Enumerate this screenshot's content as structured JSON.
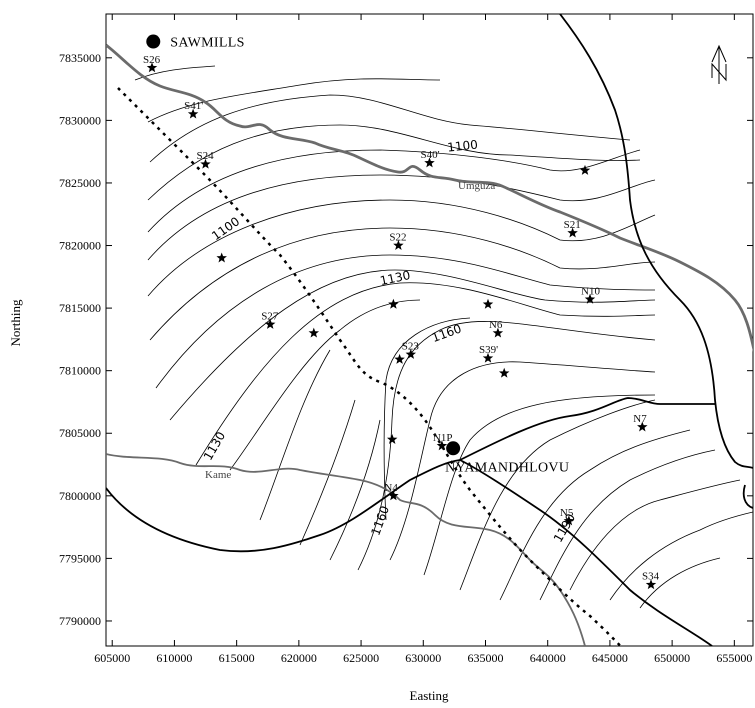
{
  "axes": {
    "xlabel": "Easting",
    "ylabel": "Northing",
    "xticks": [
      "605000",
      "610000",
      "615000",
      "620000",
      "625000",
      "630000",
      "635000",
      "640000",
      "645000",
      "650000",
      "655000"
    ],
    "yticks": [
      "7835000",
      "7830000",
      "7825000",
      "7820000",
      "7815000",
      "7810000",
      "7805000",
      "7800000",
      "7795000",
      "7790000"
    ],
    "xlim": [
      604500,
      656500
    ],
    "ylim": [
      7788000,
      7838500
    ]
  },
  "towns": [
    {
      "name": "SAWMILLS",
      "easting": 608300,
      "northing": 7836300
    },
    {
      "name": "NYAMANDHLOVU",
      "easting": 632400,
      "northing": 7803800
    }
  ],
  "rivers": [
    {
      "name": "Umguza"
    },
    {
      "name": "Kame"
    }
  ],
  "contours": {
    "labels": [
      "1100",
      "1100",
      "1130",
      "1130",
      "1160",
      "1160",
      "1190"
    ]
  },
  "sites": [
    {
      "name": "S26",
      "easting": 608200,
      "northing": 7834200
    },
    {
      "name": "S41'",
      "easting": 611500,
      "northing": 7830500
    },
    {
      "name": "S24",
      "easting": 612500,
      "northing": 7826500
    },
    {
      "name": "",
      "easting": 613800,
      "northing": 7819000
    },
    {
      "name": "S40'",
      "easting": 630500,
      "northing": 7826600
    },
    {
      "name": "",
      "easting": 643000,
      "northing": 7826000
    },
    {
      "name": "S21",
      "easting": 642000,
      "northing": 7821000
    },
    {
      "name": "S22",
      "easting": 628000,
      "northing": 7820000
    },
    {
      "name": "",
      "easting": 627600,
      "northing": 7815300
    },
    {
      "name": "",
      "easting": 635200,
      "northing": 7815300
    },
    {
      "name": "N10",
      "easting": 643400,
      "northing": 7815700
    },
    {
      "name": "S27",
      "easting": 617700,
      "northing": 7813700
    },
    {
      "name": "",
      "easting": 621200,
      "northing": 7813000
    },
    {
      "name": "N6",
      "easting": 636000,
      "northing": 7813000
    },
    {
      "name": "S23",
      "easting": 629000,
      "northing": 7811300
    },
    {
      "name": "",
      "easting": 628100,
      "northing": 7810900
    },
    {
      "name": "S39'",
      "easting": 635200,
      "northing": 7811000
    },
    {
      "name": "",
      "easting": 636500,
      "northing": 7809800
    },
    {
      "name": "",
      "easting": 627500,
      "northing": 7804500
    },
    {
      "name": "N1P",
      "easting": 631500,
      "northing": 7804000
    },
    {
      "name": "N7",
      "easting": 647600,
      "northing": 7805500
    },
    {
      "name": "N4",
      "easting": 627600,
      "northing": 7800000
    },
    {
      "name": "N5",
      "easting": 641700,
      "northing": 7798000
    },
    {
      "name": "S34",
      "easting": 648300,
      "northing": 7792900
    }
  ]
}
